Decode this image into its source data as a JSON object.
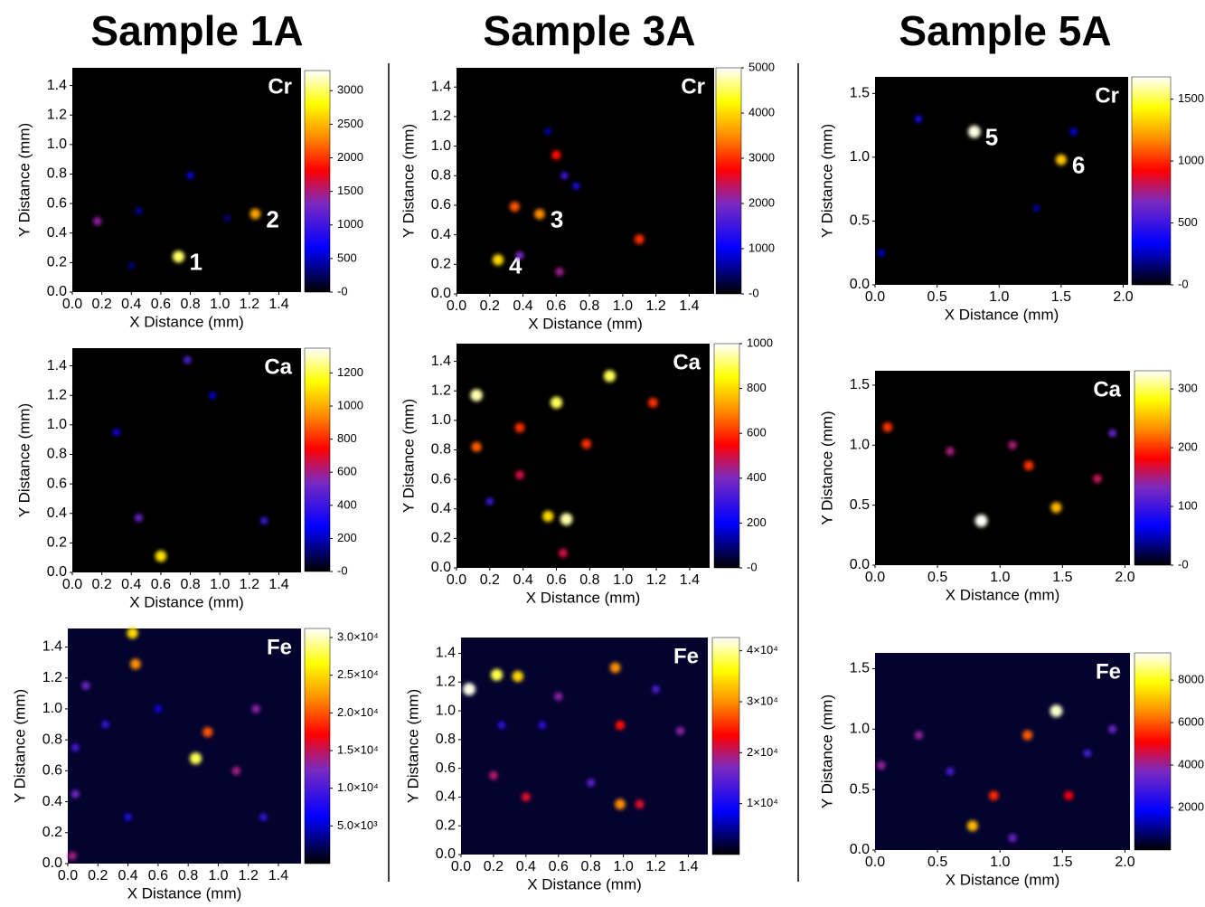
{
  "columns": [
    "Sample 1A",
    "Sample 3A",
    "Sample 5A"
  ],
  "chart_data": [
    {
      "type": "heatmap",
      "title": "Cr",
      "x_label": "X Distance (mm)",
      "y_label": "Y Distance (mm)",
      "xlim": [
        0,
        1.55
      ],
      "ylim": [
        0,
        1.52
      ],
      "xticks": [
        {
          "value": 0,
          "label": "0.0"
        },
        0.2,
        0.4,
        0.6,
        0.8,
        {
          "value": 1,
          "label": "1.0"
        },
        1.2,
        1.4
      ],
      "yticks": [
        {
          "value": 0,
          "label": "0.0"
        },
        0.2,
        0.4,
        0.6,
        0.8,
        {
          "value": 1,
          "label": "1.0"
        },
        1.2,
        1.4
      ],
      "clim": [
        0,
        3300
      ],
      "cticks": [
        {
          "value": 0,
          "label": "-0"
        },
        500,
        1000,
        1500,
        2000,
        2500,
        3000
      ],
      "spots": [
        {
          "x": 0.72,
          "y": 0.24,
          "v": 3000,
          "label": "1"
        },
        {
          "x": 1.24,
          "y": 0.53,
          "v": 2400,
          "label": "2"
        },
        {
          "x": 0.17,
          "y": 0.48,
          "v": 1400
        },
        {
          "x": 0.8,
          "y": 0.79,
          "v": 700
        },
        {
          "x": 0.45,
          "y": 0.55,
          "v": 500
        },
        {
          "x": 1.05,
          "y": 0.5,
          "v": 400
        },
        {
          "x": 0.4,
          "y": 0.18,
          "v": 400
        }
      ]
    },
    {
      "type": "heatmap",
      "title": "Ca",
      "x_label": "X Distance (mm)",
      "y_label": "Y Distance (mm)",
      "xlim": [
        0,
        1.55
      ],
      "ylim": [
        0,
        1.52
      ],
      "xticks": [
        {
          "value": 0,
          "label": "0.0"
        },
        0.2,
        0.4,
        0.6,
        0.8,
        {
          "value": 1,
          "label": "1.0"
        },
        1.2,
        1.4
      ],
      "yticks": [
        {
          "value": 0,
          "label": "0.0"
        },
        0.2,
        0.4,
        0.6,
        0.8,
        {
          "value": 1,
          "label": "1.0"
        },
        1.2,
        1.4
      ],
      "clim": [
        0,
        1350
      ],
      "cticks": [
        {
          "value": 0,
          "label": "-0"
        },
        200,
        400,
        600,
        800,
        1000,
        1200
      ],
      "spots": [
        {
          "x": 0.6,
          "y": 0.11,
          "v": 1100
        },
        {
          "x": 0.45,
          "y": 0.37,
          "v": 500
        },
        {
          "x": 0.78,
          "y": 1.44,
          "v": 450
        },
        {
          "x": 1.3,
          "y": 0.35,
          "v": 400
        },
        {
          "x": 0.3,
          "y": 0.95,
          "v": 300
        },
        {
          "x": 0.95,
          "y": 1.2,
          "v": 250
        }
      ]
    },
    {
      "type": "heatmap",
      "title": "Fe",
      "x_label": "X Distance (mm)",
      "y_label": "Y Distance (mm)",
      "xlim": [
        0,
        1.55
      ],
      "ylim": [
        0,
        1.52
      ],
      "xticks": [
        {
          "value": 0,
          "label": "0.0"
        },
        0.2,
        0.4,
        0.6,
        0.8,
        {
          "value": 1,
          "label": "1.0"
        },
        1.2,
        1.4
      ],
      "yticks": [
        {
          "value": 0,
          "label": "0.0"
        },
        0.2,
        0.4,
        0.6,
        0.8,
        {
          "value": 1,
          "label": "1.0"
        },
        1.2,
        1.4
      ],
      "clim": [
        0,
        31200
      ],
      "cticks": [
        {
          "value": 5000,
          "label": "5.0×10³"
        },
        {
          "value": 10000,
          "label": "1.0×10⁴"
        },
        {
          "value": 15000,
          "label": "1.5×10⁴"
        },
        {
          "value": 20000,
          "label": "2.0×10⁴"
        },
        {
          "value": 25000,
          "label": "2.5×10⁴"
        },
        {
          "value": 30000,
          "label": "3.0×10⁴"
        }
      ],
      "spots": [
        {
          "x": 0.85,
          "y": 0.68,
          "v": 28000
        },
        {
          "x": 0.93,
          "y": 0.85,
          "v": 20000
        },
        {
          "x": 0.45,
          "y": 1.29,
          "v": 22000
        },
        {
          "x": 0.43,
          "y": 1.49,
          "v": 25000
        },
        {
          "x": 0.12,
          "y": 1.15,
          "v": 12000
        },
        {
          "x": 0.05,
          "y": 0.45,
          "v": 12000
        },
        {
          "x": 1.12,
          "y": 0.6,
          "v": 14000
        },
        {
          "x": 1.25,
          "y": 1.0,
          "v": 13000
        },
        {
          "x": 0.03,
          "y": 0.05,
          "v": 14000
        },
        {
          "x": 0.4,
          "y": 0.3,
          "v": 8000
        },
        {
          "x": 0.25,
          "y": 0.9,
          "v": 9000
        },
        {
          "x": 1.3,
          "y": 0.3,
          "v": 9000
        },
        {
          "x": 0.6,
          "y": 1.0,
          "v": 7000
        },
        {
          "x": 0.05,
          "y": 0.75,
          "v": 10000
        }
      ]
    },
    {
      "type": "heatmap",
      "title": "Cr",
      "x_label": "X Distance (mm)",
      "y_label": "Y Distance (mm)",
      "xlim": [
        0,
        1.55
      ],
      "ylim": [
        0,
        1.53
      ],
      "xticks": [
        {
          "value": 0,
          "label": "0.0"
        },
        0.2,
        0.4,
        0.6,
        0.8,
        {
          "value": 1,
          "label": "1.0"
        },
        1.2,
        1.4
      ],
      "yticks": [
        {
          "value": 0,
          "label": "0.0"
        },
        0.2,
        0.4,
        0.6,
        0.8,
        {
          "value": 1,
          "label": "1.0"
        },
        1.2,
        1.4
      ],
      "clim": [
        0,
        5000
      ],
      "cticks": [
        {
          "value": 0,
          "label": "-0"
        },
        1000,
        2000,
        3000,
        4000,
        5000
      ],
      "spots": [
        {
          "x": 0.25,
          "y": 0.23,
          "v": 4000,
          "label": "4"
        },
        {
          "x": 0.5,
          "y": 0.54,
          "v": 3500,
          "label": "3"
        },
        {
          "x": 0.35,
          "y": 0.59,
          "v": 3200
        },
        {
          "x": 1.1,
          "y": 0.37,
          "v": 3000
        },
        {
          "x": 0.6,
          "y": 0.94,
          "v": 2800
        },
        {
          "x": 0.62,
          "y": 0.15,
          "v": 2200
        },
        {
          "x": 0.38,
          "y": 0.26,
          "v": 2000
        },
        {
          "x": 0.65,
          "y": 0.8,
          "v": 1500
        },
        {
          "x": 0.72,
          "y": 0.73,
          "v": 1200
        },
        {
          "x": 0.55,
          "y": 1.1,
          "v": 800
        }
      ]
    },
    {
      "type": "heatmap",
      "title": "Ca",
      "x_label": "X Distance (mm)",
      "y_label": "Y Distance (mm)",
      "xlim": [
        0,
        1.52
      ],
      "ylim": [
        0,
        1.52
      ],
      "xticks": [
        {
          "value": 0,
          "label": "0.0"
        },
        0.2,
        0.4,
        0.6,
        0.8,
        {
          "value": 1,
          "label": "1.0"
        },
        1.2,
        1.4
      ],
      "yticks": [
        {
          "value": 0,
          "label": "0.0"
        },
        0.2,
        0.4,
        0.6,
        0.8,
        {
          "value": 1,
          "label": "1.0"
        },
        1.2,
        1.4
      ],
      "clim": [
        0,
        1000
      ],
      "cticks": [
        {
          "value": 0,
          "label": "-0"
        },
        200,
        400,
        600,
        800,
        1000
      ],
      "spots": [
        {
          "x": 0.12,
          "y": 1.17,
          "v": 950
        },
        {
          "x": 0.92,
          "y": 1.3,
          "v": 900
        },
        {
          "x": 0.6,
          "y": 1.12,
          "v": 900
        },
        {
          "x": 0.66,
          "y": 0.33,
          "v": 950
        },
        {
          "x": 0.55,
          "y": 0.35,
          "v": 800
        },
        {
          "x": 0.38,
          "y": 0.95,
          "v": 600
        },
        {
          "x": 0.12,
          "y": 0.82,
          "v": 650
        },
        {
          "x": 0.78,
          "y": 0.84,
          "v": 600
        },
        {
          "x": 1.18,
          "y": 1.12,
          "v": 600
        },
        {
          "x": 0.38,
          "y": 0.63,
          "v": 500
        },
        {
          "x": 0.64,
          "y": 0.1,
          "v": 500
        },
        {
          "x": 0.2,
          "y": 0.45,
          "v": 300
        }
      ]
    },
    {
      "type": "heatmap",
      "title": "Fe",
      "x_label": "X Distance (mm)",
      "y_label": "Y Distance (mm)",
      "xlim": [
        0,
        1.52
      ],
      "ylim": [
        0,
        1.51
      ],
      "xticks": [
        {
          "value": 0,
          "label": "0.0"
        },
        0.2,
        0.4,
        0.6,
        0.8,
        {
          "value": 1,
          "label": "1.0"
        },
        1.2,
        1.4
      ],
      "yticks": [
        {
          "value": 0,
          "label": "0.0"
        },
        0.2,
        0.4,
        0.6,
        0.8,
        {
          "value": 1,
          "label": "1.0"
        },
        1.2,
        1.4
      ],
      "clim": [
        0,
        42600
      ],
      "cticks": [
        {
          "value": 10000,
          "label": "1×10⁴"
        },
        {
          "value": 20000,
          "label": "2×10⁴"
        },
        {
          "value": 30000,
          "label": "3×10⁴"
        },
        {
          "value": 40000,
          "label": "4×10⁴"
        }
      ],
      "spots": [
        {
          "x": 0.05,
          "y": 1.15,
          "v": 42000
        },
        {
          "x": 0.22,
          "y": 1.25,
          "v": 38000
        },
        {
          "x": 0.35,
          "y": 1.24,
          "v": 34000
        },
        {
          "x": 0.95,
          "y": 1.3,
          "v": 30000
        },
        {
          "x": 0.98,
          "y": 0.35,
          "v": 30000
        },
        {
          "x": 1.1,
          "y": 0.35,
          "v": 22000
        },
        {
          "x": 0.98,
          "y": 0.9,
          "v": 24000
        },
        {
          "x": 0.4,
          "y": 0.4,
          "v": 22000
        },
        {
          "x": 0.2,
          "y": 0.55,
          "v": 20000
        },
        {
          "x": 1.35,
          "y": 0.86,
          "v": 18000
        },
        {
          "x": 0.6,
          "y": 1.1,
          "v": 18000
        },
        {
          "x": 0.8,
          "y": 0.5,
          "v": 15000
        },
        {
          "x": 0.5,
          "y": 0.9,
          "v": 12000
        },
        {
          "x": 1.2,
          "y": 1.15,
          "v": 14000
        },
        {
          "x": 0.25,
          "y": 0.9,
          "v": 12000
        }
      ]
    },
    {
      "type": "heatmap",
      "title": "Cr",
      "x_label": "X Distance (mm)",
      "y_label": "Y Distance (mm)",
      "xlim": [
        0,
        2.04
      ],
      "ylim": [
        0,
        1.63
      ],
      "xticks": [
        {
          "value": 0,
          "label": "0.0"
        },
        0.5,
        {
          "value": 1,
          "label": "1.0"
        },
        1.5,
        {
          "value": 2,
          "label": "2.0"
        }
      ],
      "yticks": [
        {
          "value": 0,
          "label": "0.0"
        },
        0.5,
        {
          "value": 1,
          "label": "1.0"
        },
        1.5
      ],
      "clim": [
        0,
        1680
      ],
      "cticks": [
        {
          "value": 0,
          "label": "-0"
        },
        500,
        1000,
        1500
      ],
      "spots": [
        {
          "x": 0.8,
          "y": 1.2,
          "v": 1650,
          "label": "5"
        },
        {
          "x": 1.5,
          "y": 0.98,
          "v": 1300,
          "label": "6"
        },
        {
          "x": 0.35,
          "y": 1.3,
          "v": 400
        },
        {
          "x": 1.6,
          "y": 1.2,
          "v": 350
        },
        {
          "x": 0.05,
          "y": 0.25,
          "v": 300
        },
        {
          "x": 1.3,
          "y": 0.6,
          "v": 250
        }
      ]
    },
    {
      "type": "heatmap",
      "title": "Ca",
      "x_label": "X Distance (mm)",
      "y_label": "Y Distance (mm)",
      "xlim": [
        0,
        2.04
      ],
      "ylim": [
        0,
        1.62
      ],
      "xticks": [
        {
          "value": 0,
          "label": "0.0"
        },
        0.5,
        {
          "value": 1,
          "label": "1.0"
        },
        1.5,
        {
          "value": 2,
          "label": "2.0"
        }
      ],
      "yticks": [
        {
          "value": 0,
          "label": "0.0"
        },
        0.5,
        {
          "value": 1,
          "label": "1.0"
        },
        1.5
      ],
      "clim": [
        0,
        331
      ],
      "cticks": [
        {
          "value": 0,
          "label": "-0"
        },
        100,
        200,
        300
      ],
      "spots": [
        {
          "x": 0.85,
          "y": 0.37,
          "v": 330
        },
        {
          "x": 1.45,
          "y": 0.48,
          "v": 250
        },
        {
          "x": 1.23,
          "y": 0.83,
          "v": 200
        },
        {
          "x": 0.1,
          "y": 1.15,
          "v": 200
        },
        {
          "x": 1.78,
          "y": 0.72,
          "v": 160
        },
        {
          "x": 0.6,
          "y": 0.95,
          "v": 150
        },
        {
          "x": 1.1,
          "y": 1.0,
          "v": 150
        },
        {
          "x": 1.9,
          "y": 1.1,
          "v": 120
        }
      ]
    },
    {
      "type": "heatmap",
      "title": "Fe",
      "x_label": "X Distance (mm)",
      "y_label": "Y Distance (mm)",
      "xlim": [
        0,
        2.04
      ],
      "ylim": [
        0,
        1.63
      ],
      "xticks": [
        {
          "value": 0,
          "label": "0.0"
        },
        0.5,
        {
          "value": 1,
          "label": "1.0"
        },
        1.5,
        {
          "value": 2,
          "label": "2.0"
        }
      ],
      "yticks": [
        {
          "value": 0,
          "label": "0.0"
        },
        0.5,
        {
          "value": 1,
          "label": "1.0"
        },
        1.5
      ],
      "clim": [
        0,
        9280
      ],
      "cticks": [
        2000,
        4000,
        6000,
        8000
      ],
      "spots": [
        {
          "x": 1.45,
          "y": 1.15,
          "v": 9000
        },
        {
          "x": 1.22,
          "y": 0.95,
          "v": 6000
        },
        {
          "x": 0.95,
          "y": 0.45,
          "v": 5500
        },
        {
          "x": 0.78,
          "y": 0.2,
          "v": 7000
        },
        {
          "x": 1.55,
          "y": 0.45,
          "v": 5000
        },
        {
          "x": 0.35,
          "y": 0.95,
          "v": 4000
        },
        {
          "x": 1.9,
          "y": 1.0,
          "v": 3500
        },
        {
          "x": 0.05,
          "y": 0.7,
          "v": 4000
        },
        {
          "x": 1.1,
          "y": 0.1,
          "v": 3500
        },
        {
          "x": 0.6,
          "y": 0.65,
          "v": 3000
        },
        {
          "x": 1.7,
          "y": 0.8,
          "v": 3000
        }
      ]
    }
  ]
}
